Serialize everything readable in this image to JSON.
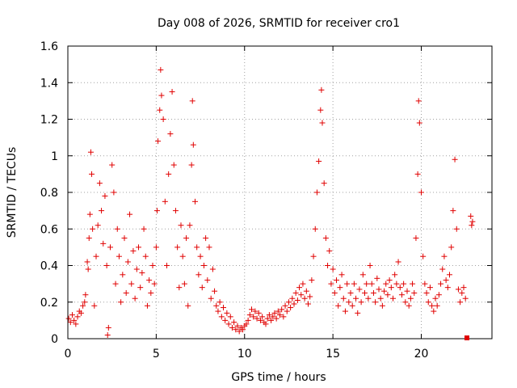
{
  "chart_data": {
    "type": "scatter",
    "title": "Day 008 of 2026, SRMTID for receiver cro1",
    "xlabel": "GPS time / hours",
    "ylabel": "SRMTID / TECUs",
    "xlim": [
      0,
      24
    ],
    "ylim": [
      0,
      1.6
    ],
    "xticks": [
      0,
      5,
      10,
      15,
      20
    ],
    "xtick_labels": [
      "0",
      "5",
      "10",
      "15",
      "20"
    ],
    "yticks": [
      0,
      0.2,
      0.4,
      0.6,
      0.8,
      1.0,
      1.2,
      1.4,
      1.6
    ],
    "ytick_labels": [
      "0",
      "0.2",
      "0.4",
      "0.6",
      "0.8",
      "1",
      "1.2",
      "1.4",
      "1.6"
    ],
    "grid": true,
    "marker": "plus",
    "color": "#e00000",
    "series": [
      {
        "name": "SRMTID",
        "points": [
          [
            0.05,
            0.11
          ],
          [
            0.15,
            0.09
          ],
          [
            0.25,
            0.13
          ],
          [
            0.35,
            0.1
          ],
          [
            0.45,
            0.08
          ],
          [
            0.55,
            0.12
          ],
          [
            0.65,
            0.15
          ],
          [
            0.75,
            0.14
          ],
          [
            0.85,
            0.18
          ],
          [
            0.95,
            0.2
          ],
          [
            1.0,
            0.24
          ],
          [
            1.1,
            0.42
          ],
          [
            1.15,
            0.38
          ],
          [
            1.2,
            0.55
          ],
          [
            1.25,
            0.68
          ],
          [
            1.3,
            1.02
          ],
          [
            1.35,
            0.9
          ],
          [
            1.4,
            0.6
          ],
          [
            1.5,
            0.18
          ],
          [
            1.6,
            0.45
          ],
          [
            1.7,
            0.62
          ],
          [
            1.8,
            0.85
          ],
          [
            1.9,
            0.7
          ],
          [
            2.0,
            0.52
          ],
          [
            2.1,
            0.78
          ],
          [
            2.2,
            0.4
          ],
          [
            2.25,
            0.02
          ],
          [
            2.3,
            0.06
          ],
          [
            2.4,
            0.5
          ],
          [
            2.5,
            0.95
          ],
          [
            2.6,
            0.8
          ],
          [
            2.7,
            0.3
          ],
          [
            2.8,
            0.6
          ],
          [
            2.9,
            0.45
          ],
          [
            3.0,
            0.2
          ],
          [
            3.1,
            0.35
          ],
          [
            3.2,
            0.55
          ],
          [
            3.3,
            0.25
          ],
          [
            3.4,
            0.42
          ],
          [
            3.5,
            0.68
          ],
          [
            3.6,
            0.3
          ],
          [
            3.7,
            0.48
          ],
          [
            3.8,
            0.22
          ],
          [
            3.9,
            0.38
          ],
          [
            4.0,
            0.5
          ],
          [
            4.1,
            0.28
          ],
          [
            4.2,
            0.36
          ],
          [
            4.3,
            0.6
          ],
          [
            4.4,
            0.45
          ],
          [
            4.5,
            0.18
          ],
          [
            4.6,
            0.32
          ],
          [
            4.7,
            0.25
          ],
          [
            4.8,
            0.4
          ],
          [
            4.9,
            0.3
          ],
          [
            5.0,
            0.5
          ],
          [
            5.05,
            0.7
          ],
          [
            5.1,
            1.08
          ],
          [
            5.2,
            1.25
          ],
          [
            5.25,
            1.47
          ],
          [
            5.3,
            1.33
          ],
          [
            5.4,
            1.2
          ],
          [
            5.5,
            0.75
          ],
          [
            5.6,
            0.4
          ],
          [
            5.7,
            0.9
          ],
          [
            5.8,
            1.12
          ],
          [
            5.9,
            1.35
          ],
          [
            6.0,
            0.95
          ],
          [
            6.1,
            0.7
          ],
          [
            6.2,
            0.5
          ],
          [
            6.3,
            0.28
          ],
          [
            6.4,
            0.62
          ],
          [
            6.5,
            0.45
          ],
          [
            6.6,
            0.3
          ],
          [
            6.7,
            0.55
          ],
          [
            6.8,
            0.18
          ],
          [
            6.9,
            0.62
          ],
          [
            7.0,
            0.95
          ],
          [
            7.05,
            1.3
          ],
          [
            7.1,
            1.06
          ],
          [
            7.2,
            0.75
          ],
          [
            7.3,
            0.5
          ],
          [
            7.4,
            0.35
          ],
          [
            7.5,
            0.45
          ],
          [
            7.6,
            0.28
          ],
          [
            7.7,
            0.4
          ],
          [
            7.8,
            0.55
          ],
          [
            7.9,
            0.32
          ],
          [
            8.0,
            0.5
          ],
          [
            8.1,
            0.22
          ],
          [
            8.2,
            0.38
          ],
          [
            8.3,
            0.26
          ],
          [
            8.4,
            0.18
          ],
          [
            8.5,
            0.15
          ],
          [
            8.6,
            0.2
          ],
          [
            8.7,
            0.12
          ],
          [
            8.8,
            0.17
          ],
          [
            8.9,
            0.1
          ],
          [
            9.0,
            0.14
          ],
          [
            9.1,
            0.08
          ],
          [
            9.2,
            0.12
          ],
          [
            9.3,
            0.06
          ],
          [
            9.4,
            0.09
          ],
          [
            9.5,
            0.05
          ],
          [
            9.6,
            0.07
          ],
          [
            9.7,
            0.04
          ],
          [
            9.8,
            0.06
          ],
          [
            9.9,
            0.05
          ],
          [
            10.0,
            0.07
          ],
          [
            10.1,
            0.08
          ],
          [
            10.2,
            0.1
          ],
          [
            10.3,
            0.13
          ],
          [
            10.4,
            0.16
          ],
          [
            10.5,
            0.12
          ],
          [
            10.6,
            0.15
          ],
          [
            10.7,
            0.11
          ],
          [
            10.8,
            0.14
          ],
          [
            10.9,
            0.1
          ],
          [
            11.0,
            0.12
          ],
          [
            11.1,
            0.09
          ],
          [
            11.2,
            0.08
          ],
          [
            11.3,
            0.11
          ],
          [
            11.4,
            0.13
          ],
          [
            11.5,
            0.1
          ],
          [
            11.6,
            0.12
          ],
          [
            11.7,
            0.14
          ],
          [
            11.8,
            0.11
          ],
          [
            11.9,
            0.15
          ],
          [
            12.0,
            0.13
          ],
          [
            12.1,
            0.16
          ],
          [
            12.2,
            0.12
          ],
          [
            12.3,
            0.18
          ],
          [
            12.4,
            0.15
          ],
          [
            12.5,
            0.2
          ],
          [
            12.6,
            0.17
          ],
          [
            12.7,
            0.22
          ],
          [
            12.8,
            0.19
          ],
          [
            12.9,
            0.25
          ],
          [
            13.0,
            0.21
          ],
          [
            13.1,
            0.28
          ],
          [
            13.2,
            0.24
          ],
          [
            13.3,
            0.3
          ],
          [
            13.4,
            0.22
          ],
          [
            13.5,
            0.26
          ],
          [
            13.6,
            0.19
          ],
          [
            13.7,
            0.23
          ],
          [
            13.8,
            0.32
          ],
          [
            13.9,
            0.45
          ],
          [
            14.0,
            0.6
          ],
          [
            14.1,
            0.8
          ],
          [
            14.2,
            0.97
          ],
          [
            14.3,
            1.25
          ],
          [
            14.35,
            1.36
          ],
          [
            14.4,
            1.18
          ],
          [
            14.5,
            0.85
          ],
          [
            14.6,
            0.55
          ],
          [
            14.7,
            0.4
          ],
          [
            14.8,
            0.48
          ],
          [
            14.9,
            0.3
          ],
          [
            15.0,
            0.38
          ],
          [
            15.1,
            0.25
          ],
          [
            15.2,
            0.32
          ],
          [
            15.3,
            0.18
          ],
          [
            15.4,
            0.28
          ],
          [
            15.5,
            0.35
          ],
          [
            15.6,
            0.22
          ],
          [
            15.7,
            0.15
          ],
          [
            15.8,
            0.3
          ],
          [
            15.9,
            0.2
          ],
          [
            16.0,
            0.25
          ],
          [
            16.1,
            0.18
          ],
          [
            16.2,
            0.3
          ],
          [
            16.3,
            0.22
          ],
          [
            16.4,
            0.14
          ],
          [
            16.5,
            0.27
          ],
          [
            16.6,
            0.2
          ],
          [
            16.7,
            0.35
          ],
          [
            16.8,
            0.25
          ],
          [
            16.9,
            0.3
          ],
          [
            17.0,
            0.22
          ],
          [
            17.1,
            0.4
          ],
          [
            17.2,
            0.3
          ],
          [
            17.3,
            0.25
          ],
          [
            17.4,
            0.2
          ],
          [
            17.5,
            0.33
          ],
          [
            17.6,
            0.27
          ],
          [
            17.7,
            0.22
          ],
          [
            17.8,
            0.18
          ],
          [
            17.9,
            0.26
          ],
          [
            18.0,
            0.3
          ],
          [
            18.1,
            0.24
          ],
          [
            18.2,
            0.32
          ],
          [
            18.3,
            0.28
          ],
          [
            18.4,
            0.22
          ],
          [
            18.5,
            0.35
          ],
          [
            18.6,
            0.3
          ],
          [
            18.7,
            0.42
          ],
          [
            18.8,
            0.28
          ],
          [
            18.9,
            0.24
          ],
          [
            19.0,
            0.3
          ],
          [
            19.1,
            0.2
          ],
          [
            19.2,
            0.26
          ],
          [
            19.3,
            0.18
          ],
          [
            19.4,
            0.22
          ],
          [
            19.5,
            0.3
          ],
          [
            19.6,
            0.25
          ],
          [
            19.7,
            0.55
          ],
          [
            19.8,
            0.9
          ],
          [
            19.85,
            1.3
          ],
          [
            19.9,
            1.18
          ],
          [
            20.0,
            0.8
          ],
          [
            20.1,
            0.45
          ],
          [
            20.2,
            0.3
          ],
          [
            20.3,
            0.25
          ],
          [
            20.4,
            0.2
          ],
          [
            20.5,
            0.28
          ],
          [
            20.6,
            0.18
          ],
          [
            20.7,
            0.15
          ],
          [
            20.8,
            0.22
          ],
          [
            20.9,
            0.18
          ],
          [
            21.0,
            0.24
          ],
          [
            21.1,
            0.3
          ],
          [
            21.2,
            0.38
          ],
          [
            21.3,
            0.45
          ],
          [
            21.4,
            0.32
          ],
          [
            21.5,
            0.28
          ],
          [
            21.6,
            0.35
          ],
          [
            21.7,
            0.5
          ],
          [
            21.8,
            0.7
          ],
          [
            21.9,
            0.98
          ],
          [
            22.0,
            0.6
          ],
          [
            22.1,
            0.27
          ],
          [
            22.2,
            0.2
          ],
          [
            22.3,
            0.25
          ],
          [
            22.4,
            0.28
          ],
          [
            22.5,
            0.22
          ],
          [
            22.8,
            0.67
          ],
          [
            22.85,
            0.62
          ],
          [
            22.9,
            0.64
          ]
        ]
      }
    ]
  }
}
